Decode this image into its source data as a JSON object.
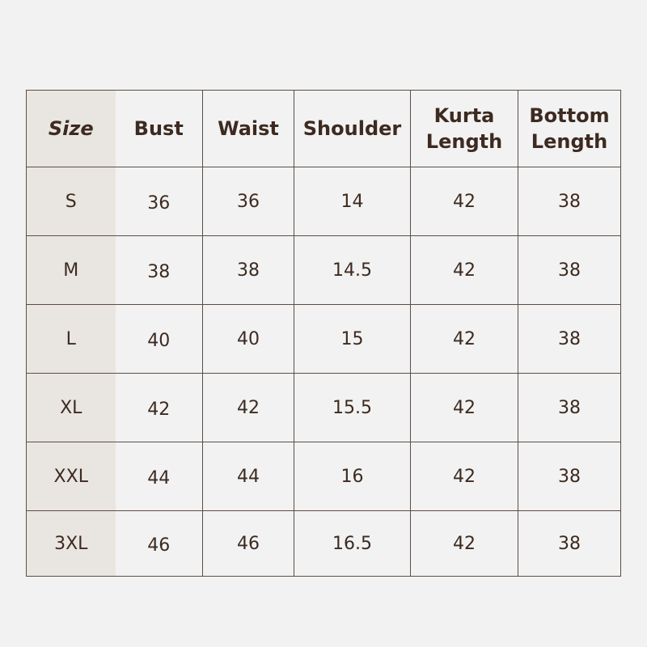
{
  "headers": [
    "Size",
    "Bust",
    "Waist",
    "Shoulder",
    "Kurta Length",
    "Bottom Length"
  ],
  "header_lines": {
    "kurta": [
      "Kurta",
      "Length"
    ],
    "bottom": [
      "Bottom",
      "Length"
    ]
  },
  "rows": [
    [
      "S",
      "36",
      "36",
      "14",
      "42",
      "38"
    ],
    [
      "M",
      "38",
      "38",
      "14.5",
      "42",
      "38"
    ],
    [
      "L",
      "40",
      "40",
      "15",
      "42",
      "38"
    ],
    [
      "XL",
      "42",
      "42",
      "15.5",
      "42",
      "38"
    ],
    [
      "XXL",
      "44",
      "44",
      "16",
      "42",
      "38"
    ],
    [
      "3XL",
      "46",
      "46",
      "16.5",
      "42",
      "38"
    ]
  ],
  "colors": {
    "line": "#5d4d44",
    "text": "#3d2a20",
    "size_column": "#e9e6e1",
    "background": "#f2f2f2"
  }
}
